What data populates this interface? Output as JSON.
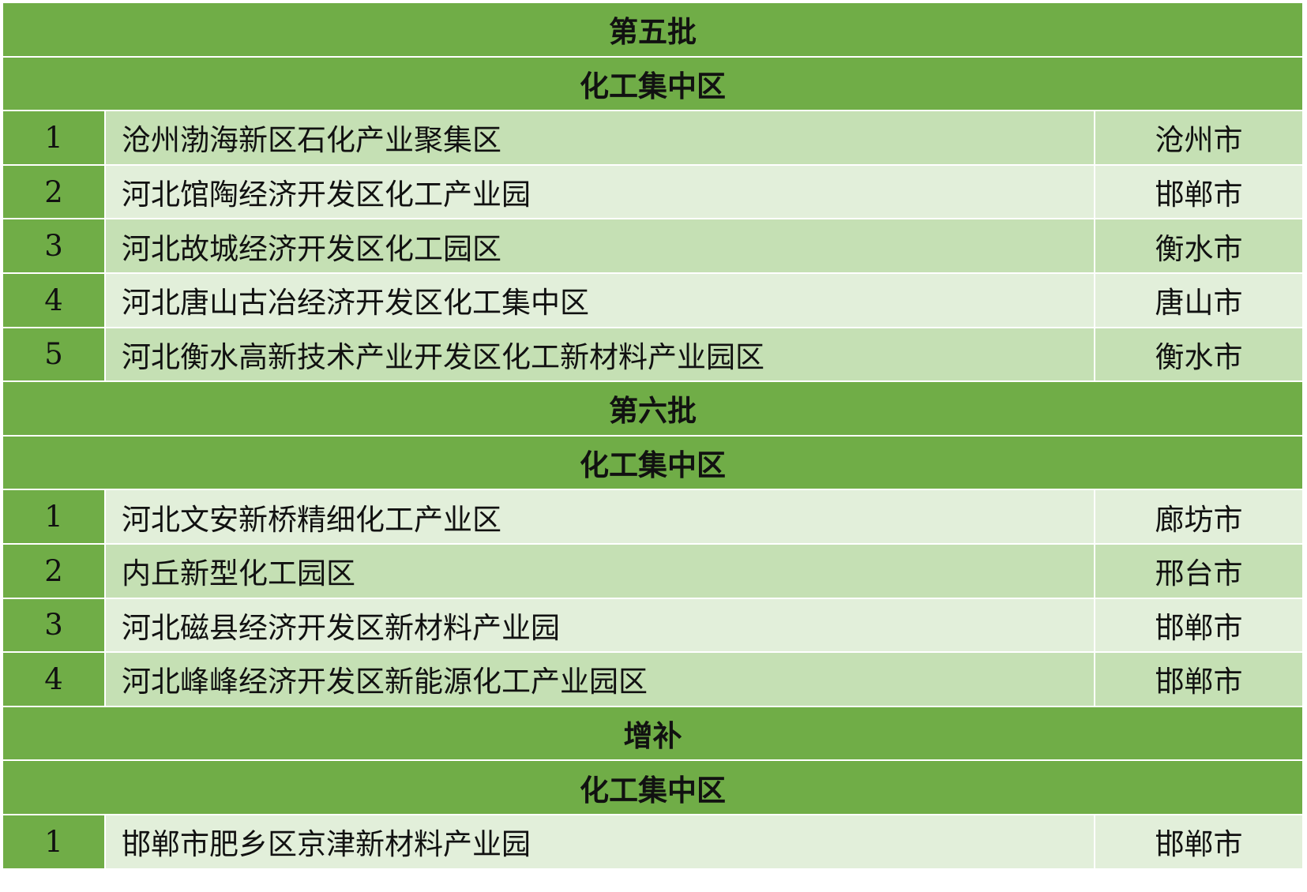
{
  "colors": {
    "header": "#70AD47",
    "row_dark": "#C5E0B4",
    "row_light": "#E2EFDA"
  },
  "sections": [
    {
      "batch": "第五批",
      "category": "化工集中区",
      "rows": [
        {
          "no": "1",
          "name": "沧州渤海新区石化产业聚集区",
          "city": "沧州市"
        },
        {
          "no": "2",
          "name": "河北馆陶经济开发区化工产业园",
          "city": "邯郸市"
        },
        {
          "no": "3",
          "name": "河北故城经济开发区化工园区",
          "city": "衡水市"
        },
        {
          "no": "4",
          "name": "河北唐山古冶经济开发区化工集中区",
          "city": "唐山市"
        },
        {
          "no": "5",
          "name": "河北衡水高新技术产业开发区化工新材料产业园区",
          "city": "衡水市"
        }
      ]
    },
    {
      "batch": "第六批",
      "category": "化工集中区",
      "rows": [
        {
          "no": "1",
          "name": "河北文安新桥精细化工产业区",
          "city": "廊坊市"
        },
        {
          "no": "2",
          "name": "内丘新型化工园区",
          "city": "邢台市"
        },
        {
          "no": "3",
          "name": "河北磁县经济开发区新材料产业园",
          "city": "邯郸市"
        },
        {
          "no": "4",
          "name": "河北峰峰经济开发区新能源化工产业园区",
          "city": "邯郸市"
        }
      ]
    },
    {
      "batch": "增补",
      "category": "化工集中区",
      "rows": [
        {
          "no": "1",
          "name": "邯郸市肥乡区京津新材料产业园",
          "city": "邯郸市"
        }
      ]
    }
  ]
}
